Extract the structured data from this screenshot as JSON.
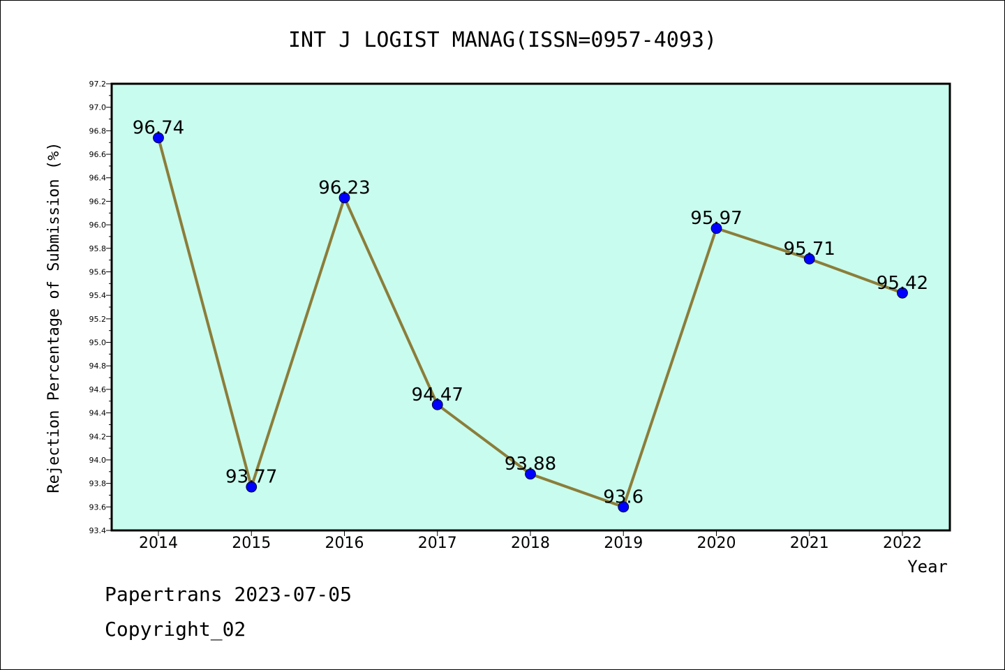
{
  "chart_data": {
    "type": "line",
    "title": "INT J LOGIST MANAG(ISSN=0957-4093)",
    "xlabel": "Year",
    "ylabel": "Rejection Percentage of Submission (%)",
    "categories": [
      "2014",
      "2015",
      "2016",
      "2017",
      "2018",
      "2019",
      "2020",
      "2021",
      "2022"
    ],
    "series": [
      {
        "values": [
          96.74,
          93.77,
          96.23,
          94.47,
          93.88,
          93.6,
          95.97,
          95.71,
          95.42
        ],
        "labels": [
          "96.74",
          "93.77",
          "96.23",
          "94.47",
          "93.88",
          "93.6",
          "95.97",
          "95.71",
          "95.42"
        ]
      }
    ],
    "ylim": [
      93.4,
      97.2
    ],
    "yticks": [
      "93.4",
      "93.6",
      "93.8",
      "94.0",
      "94.2",
      "94.4",
      "94.6",
      "94.8",
      "95.0",
      "95.2",
      "95.4",
      "95.6",
      "95.8",
      "96.0",
      "96.2",
      "96.4",
      "96.6",
      "96.8",
      "97.0",
      "97.2"
    ],
    "grid": false,
    "colors": {
      "plot_background": "#c8fcee",
      "line": "#8b7d3a",
      "marker": "#0000ff"
    }
  },
  "footer": {
    "line1": "Papertrans 2023-07-05",
    "line2": "Copyright_02"
  }
}
